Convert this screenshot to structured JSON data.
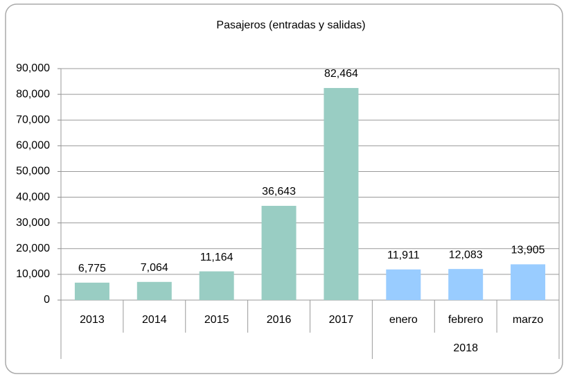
{
  "chart_data": {
    "type": "bar",
    "title": "Pasajeros (entradas y salidas)",
    "categories": [
      "2013",
      "2014",
      "2015",
      "2016",
      "2017",
      "enero",
      "febrero",
      "marzo"
    ],
    "values": [
      6775,
      7064,
      11164,
      36643,
      82464,
      11911,
      12083,
      13905
    ],
    "value_labels": [
      "6,775",
      "7,064",
      "11,164",
      "36,643",
      "82,464",
      "11,911",
      "12,083",
      "13,905"
    ],
    "colors": [
      "#99cdc3",
      "#99cdc3",
      "#99cdc3",
      "#99cdc3",
      "#99cdc3",
      "#99ccff",
      "#99ccff",
      "#99ccff"
    ],
    "groups": [
      {
        "label": "2018",
        "span": [
          5,
          7
        ]
      }
    ],
    "ylim": [
      0,
      90000
    ],
    "yticks": [
      0,
      {
        "value": 10000,
        "label": "10,000"
      },
      {
        "value": 20000,
        "label": "20,000"
      },
      {
        "value": 30000,
        "label": "30,000"
      },
      {
        "value": 40000,
        "label": "40,000"
      },
      {
        "value": 50000,
        "label": "50,000"
      },
      {
        "value": 60000,
        "label": "60,000"
      },
      {
        "value": 70000,
        "label": "70,000"
      },
      {
        "value": 80000,
        "label": "80,000"
      },
      {
        "value": 90000,
        "label": "90,000"
      }
    ],
    "grid": true
  }
}
